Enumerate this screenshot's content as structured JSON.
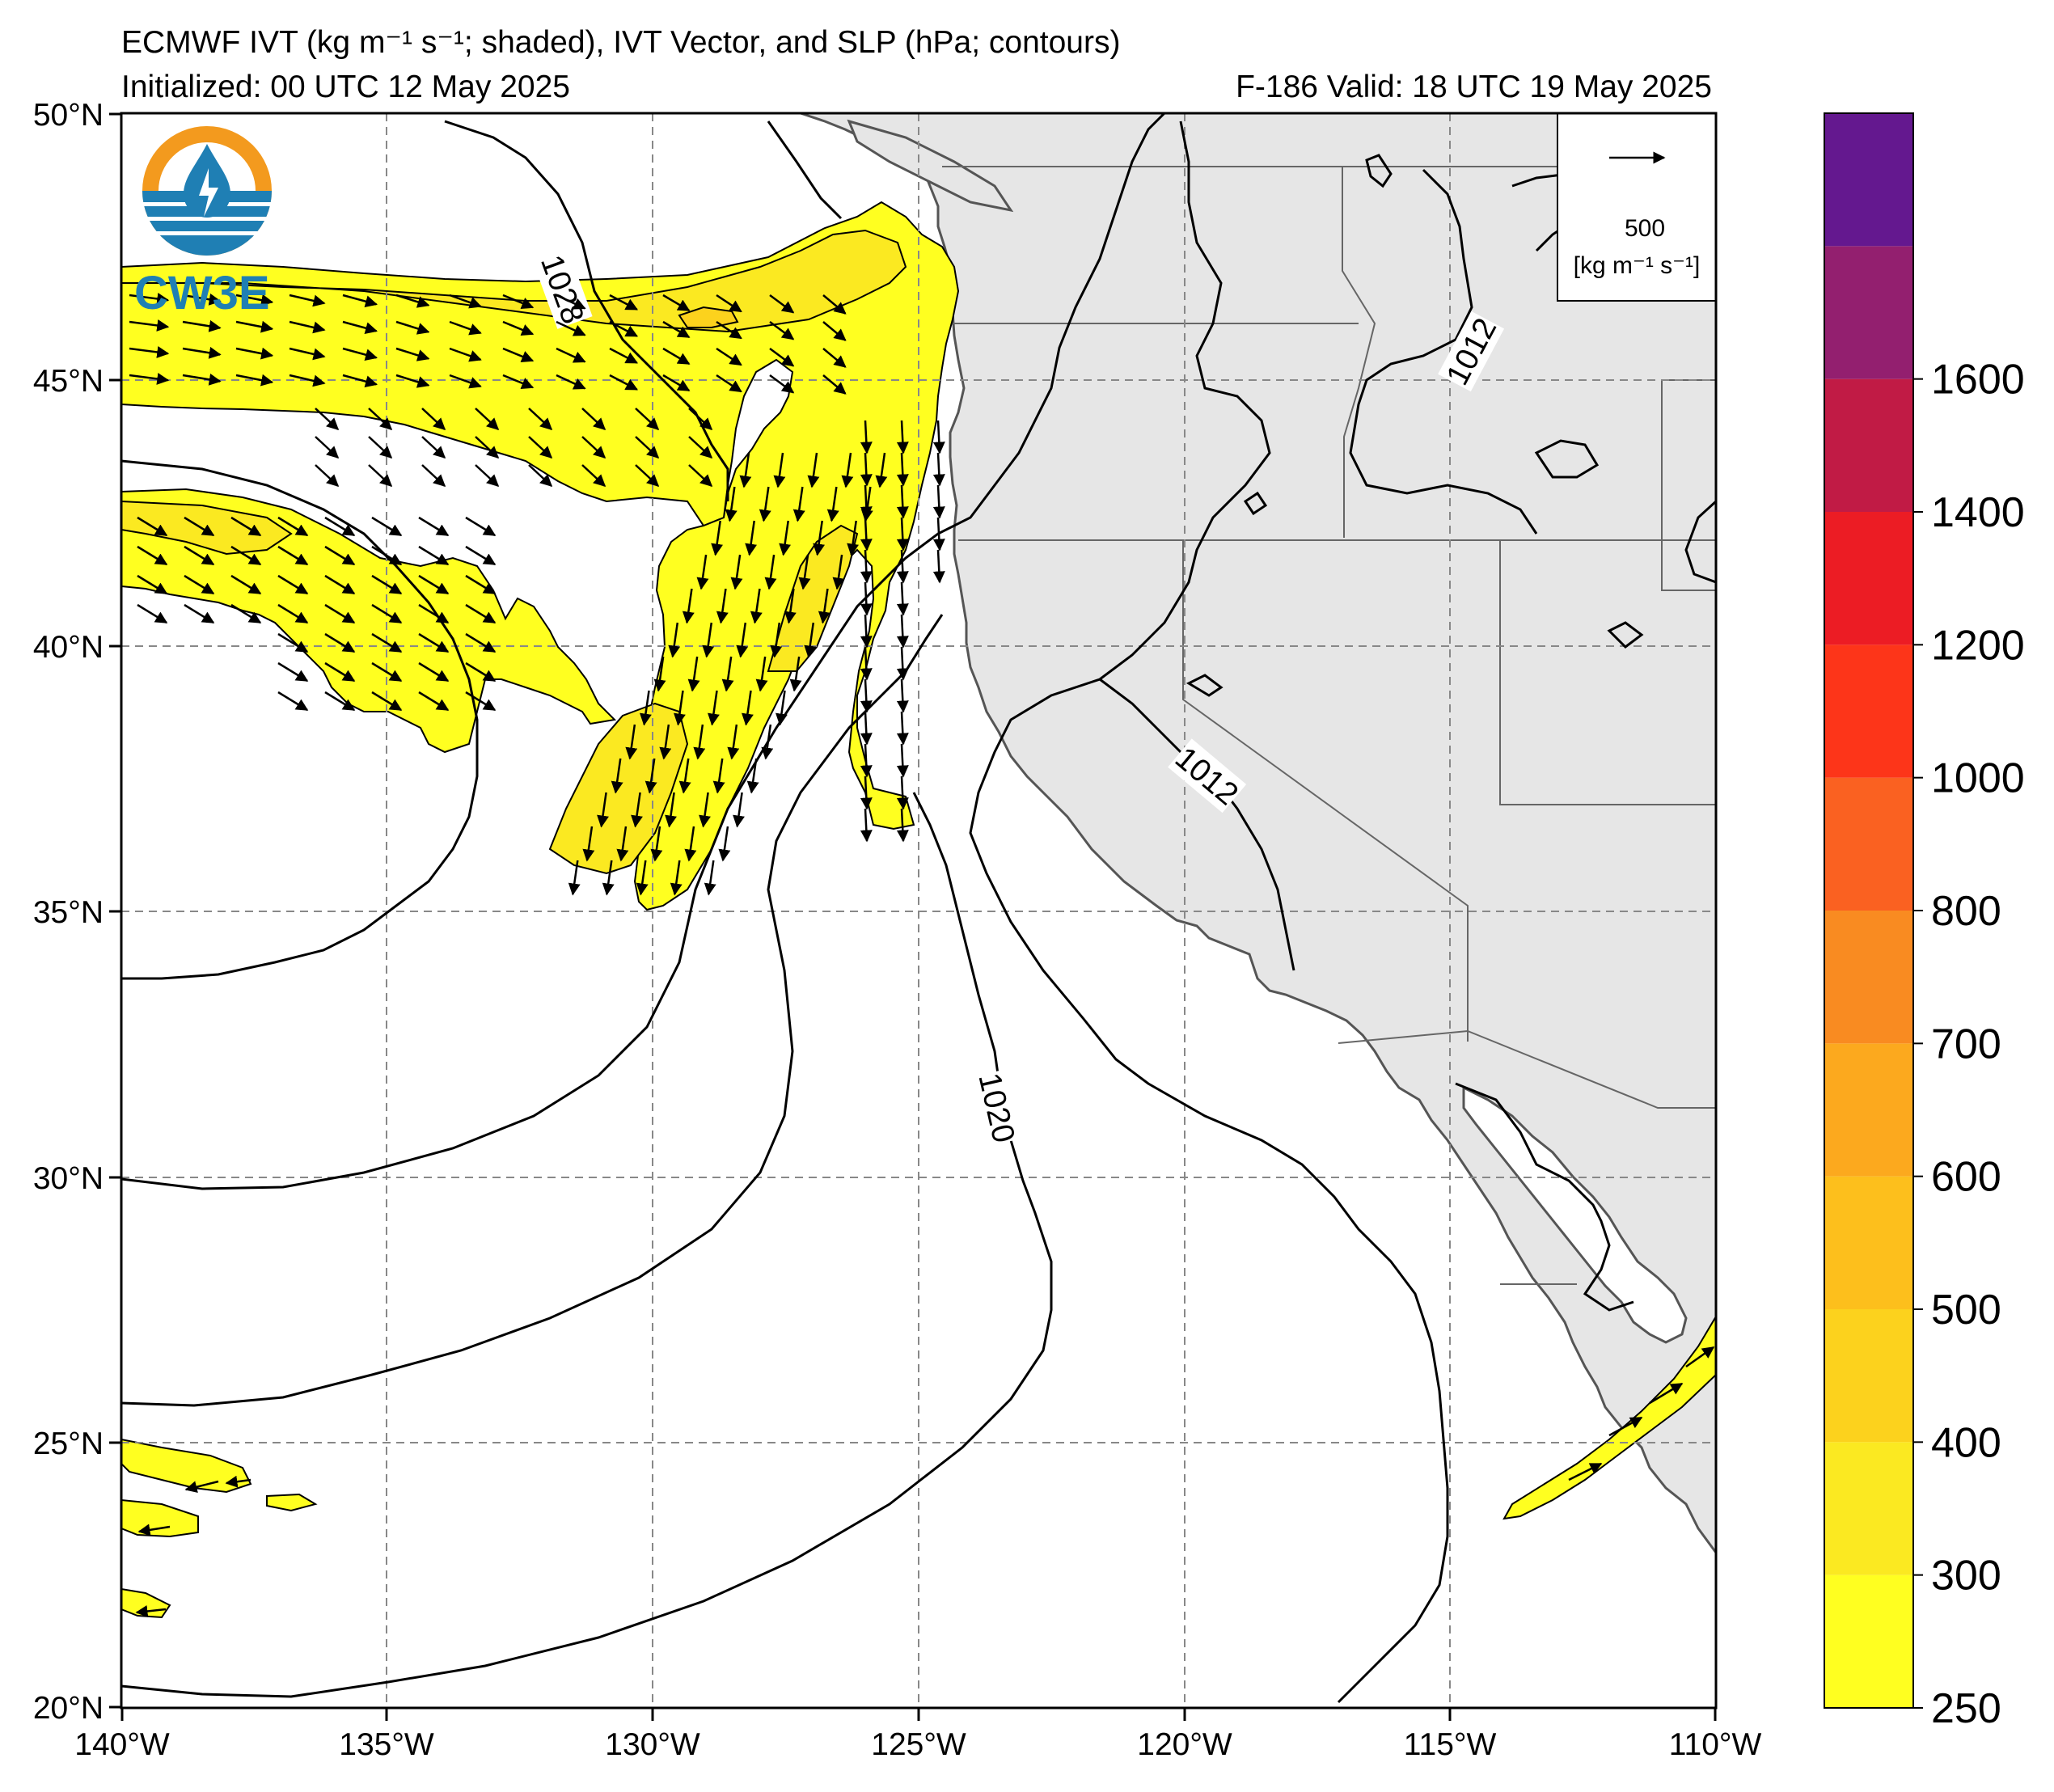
{
  "header": {
    "title": "ECMWF IVT (kg m⁻¹ s⁻¹; shaded), IVT Vector, and SLP (hPa; contours)",
    "initialized": "Initialized: 00 UTC 12 May 2025",
    "valid": "F-186  Valid: 18 UTC 19 May 2025"
  },
  "logo": {
    "text": "CW3E",
    "colors": {
      "orange": "#f39a1e",
      "blue": "#1f7fb4"
    }
  },
  "map": {
    "lat_ticks": [
      "50°N",
      "45°N",
      "40°N",
      "35°N",
      "30°N",
      "25°N",
      "20°N"
    ],
    "lon_ticks": [
      "140°W",
      "135°W",
      "130°W",
      "125°W",
      "120°W",
      "115°W",
      "110°W"
    ],
    "extent": {
      "lon": [
        -140,
        -110
      ],
      "lat": [
        20,
        50
      ]
    },
    "gridlines": true,
    "land_color": "#e6e6e6",
    "ocean_color": "#ffffff"
  },
  "contour_labels": [
    "1028",
    "1012",
    "1012",
    "1020"
  ],
  "vector_key": {
    "value": "500",
    "units": "[kg m⁻¹ s⁻¹]"
  },
  "colorbar": {
    "levels": [
      "250",
      "300",
      "400",
      "500",
      "600",
      "700",
      "800",
      "1000",
      "1200",
      "1400",
      "1600"
    ],
    "colors": [
      "#ffff20",
      "#fbe921",
      "#fcd21d",
      "#fdbf1c",
      "#fca91e",
      "#f98b21",
      "#fa6121",
      "#fd3519",
      "#ec1c24",
      "#c11b45",
      "#931f6f",
      "#64188f"
    ]
  }
}
